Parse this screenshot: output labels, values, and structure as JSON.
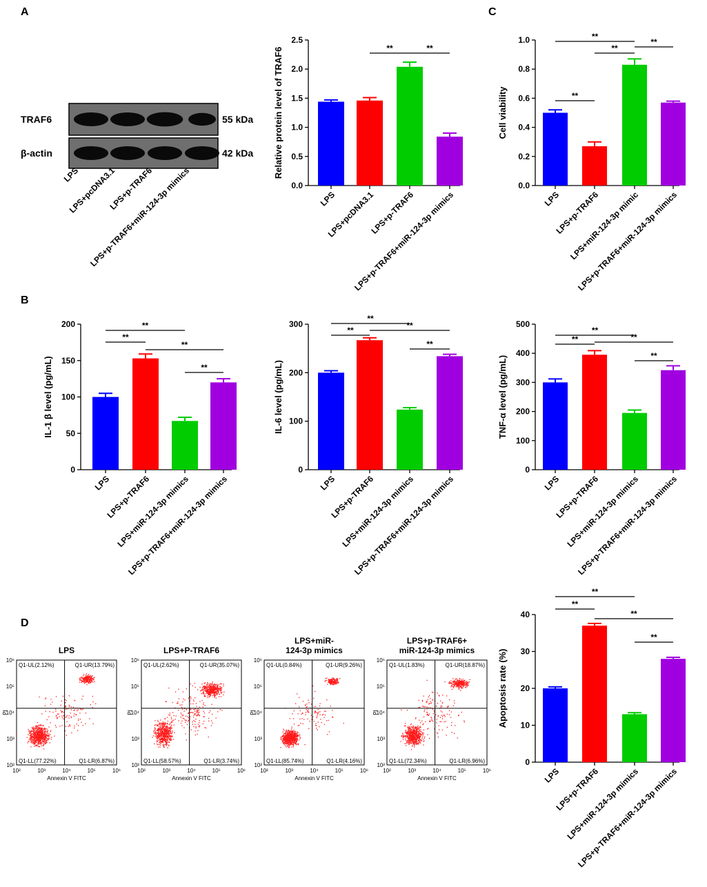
{
  "panels": {
    "A": "A",
    "B": "B",
    "C": "C",
    "D": "D"
  },
  "colors": {
    "blue": "#0000ff",
    "red": "#ff0000",
    "green": "#00cc00",
    "purple": "#a000e0",
    "dot": "#ff1a1a"
  },
  "western_blot": {
    "bands": [
      {
        "name": "TRAF6",
        "kda": "55 kDa",
        "intensity": [
          1.0,
          1.0,
          1.1,
          0.8
        ]
      },
      {
        "name": "β-actin",
        "kda": "42 kDa",
        "intensity": [
          1.0,
          1.0,
          1.0,
          1.0
        ]
      }
    ],
    "lanes": [
      "LPS",
      "LPS+pcDNA3.1",
      "LPS+p-TRAF6",
      "LPS+p-TRAF6+miR-124-3p mimics"
    ]
  },
  "chart_data": [
    {
      "id": "traf6",
      "type": "bar",
      "ylabel": "Relative protein level of TRAF6",
      "categories": [
        "LPS",
        "LPS+pcDNA3.1",
        "LPS+p-TRAF6",
        "LPS+p-TRAF6+miR-124-3p mimics"
      ],
      "values": [
        1.44,
        1.46,
        2.04,
        0.84
      ],
      "errors": [
        0.03,
        0.05,
        0.08,
        0.06
      ],
      "ylim": [
        0,
        2.5
      ],
      "yticks": [
        "0.0",
        "0.5",
        "1.0",
        "1.5",
        "2.0",
        "2.5"
      ],
      "ytickvals": [
        0,
        0.5,
        1,
        1.5,
        2,
        2.5
      ],
      "sig": [
        {
          "from": 1,
          "to": 2,
          "label": "**"
        },
        {
          "from": 2,
          "to": 3,
          "label": "**"
        }
      ]
    },
    {
      "id": "viability",
      "type": "bar",
      "ylabel": "Cell viability",
      "categories": [
        "LPS",
        "LPS+p-TRAF6",
        "LPS+miR-124-3p mimic",
        "LPS+p-TRAF6+miR-124-3p mimics"
      ],
      "values": [
        0.5,
        0.27,
        0.83,
        0.57
      ],
      "errors": [
        0.02,
        0.03,
        0.04,
        0.01
      ],
      "ylim": [
        0,
        1.0
      ],
      "yticks": [
        "0.0",
        "0.2",
        "0.4",
        "0.6",
        "0.8",
        "1.0"
      ],
      "ytickvals": [
        0,
        0.2,
        0.4,
        0.6,
        0.8,
        1.0
      ],
      "sig": [
        {
          "from": 0,
          "to": 2,
          "label": "**"
        },
        {
          "from": 1,
          "to": 2,
          "label": "**"
        },
        {
          "from": 2,
          "to": 3,
          "label": "**"
        },
        {
          "from": 0,
          "to": 1,
          "label": "**"
        }
      ]
    },
    {
      "id": "il1b",
      "type": "bar",
      "ylabel": "IL-1 β level (pg/mL)",
      "categories": [
        "LPS",
        "LPS+p-TRAF6",
        "LPS+miR-124-3p mimics",
        "LPS+p-TRAF6+miR-124-3p mimics"
      ],
      "values": [
        100,
        153,
        67,
        120
      ],
      "errors": [
        5,
        6,
        5,
        5
      ],
      "ylim": [
        0,
        200
      ],
      "yticks": [
        "0",
        "50",
        "100",
        "150",
        "200"
      ],
      "ytickvals": [
        0,
        50,
        100,
        150,
        200
      ],
      "sig": [
        {
          "from": 0,
          "to": 2,
          "label": "**"
        },
        {
          "from": 0,
          "to": 1,
          "label": "**"
        },
        {
          "from": 1,
          "to": 3,
          "label": "**"
        },
        {
          "from": 2,
          "to": 3,
          "label": "**"
        }
      ]
    },
    {
      "id": "il6",
      "type": "bar",
      "ylabel": "IL-6 level (pg/mL)",
      "categories": [
        "LPS",
        "LPS+p-TRAF6",
        "LPS+miR-124-3p mimics",
        "LPS+p-TRAF6+miR-124-3p mimics"
      ],
      "values": [
        200,
        267,
        124,
        234
      ],
      "errors": [
        4,
        5,
        4,
        4
      ],
      "ylim": [
        0,
        300
      ],
      "yticks": [
        "0",
        "100",
        "200",
        "300"
      ],
      "ytickvals": [
        0,
        100,
        200,
        300
      ],
      "sig": [
        {
          "from": 0,
          "to": 2,
          "label": "**"
        },
        {
          "from": 0,
          "to": 1,
          "label": "**"
        },
        {
          "from": 1,
          "to": 3,
          "label": "**"
        },
        {
          "from": 2,
          "to": 3,
          "label": "**"
        }
      ]
    },
    {
      "id": "tnfa",
      "type": "bar",
      "ylabel": "TNF-α level (pg/mL)",
      "categories": [
        "LPS",
        "LPS+p-TRAF6",
        "LPS+miR-124-3p mimics",
        "LPS+p-TRAF6+miR-124-3p mimics"
      ],
      "values": [
        300,
        395,
        195,
        342
      ],
      "errors": [
        12,
        14,
        10,
        15
      ],
      "ylim": [
        0,
        500
      ],
      "yticks": [
        "0",
        "100",
        "200",
        "300",
        "400",
        "500"
      ],
      "ytickvals": [
        0,
        100,
        200,
        300,
        400,
        500
      ],
      "sig": [
        {
          "from": 0,
          "to": 2,
          "label": "**"
        },
        {
          "from": 0,
          "to": 1,
          "label": "**"
        },
        {
          "from": 1,
          "to": 3,
          "label": "**"
        },
        {
          "from": 2,
          "to": 3,
          "label": "**"
        }
      ]
    },
    {
      "id": "apoptosis",
      "type": "bar",
      "ylabel": "Apoptosis rate (%)",
      "categories": [
        "LPS",
        "LPS+p-TRAF6",
        "LPS+miR-124-3p mimics",
        "LPS+p-TRAF6+miR-124-3p mimics"
      ],
      "values": [
        20,
        37,
        13,
        28
      ],
      "errors": [
        0.4,
        0.6,
        0.4,
        0.4
      ],
      "ylim": [
        0,
        40
      ],
      "yticks": [
        "0",
        "10",
        "20",
        "30",
        "40"
      ],
      "ytickvals": [
        0,
        10,
        20,
        30,
        40
      ],
      "sig": [
        {
          "from": 0,
          "to": 2,
          "label": "**"
        },
        {
          "from": 1,
          "to": 3,
          "label": "**"
        },
        {
          "from": 0,
          "to": 1,
          "label": "**"
        },
        {
          "from": 2,
          "to": 3,
          "label": "**"
        }
      ]
    }
  ],
  "flow": {
    "xlabel": "Annexin V FITC",
    "ylabel": "PI",
    "ticks": [
      "10²",
      "10³",
      "10⁴",
      "10⁵",
      "10⁶"
    ],
    "plots": [
      {
        "title": [
          "LPS"
        ],
        "ul": "Q1-UL(2.12%)",
        "ur": "Q1-UR(13.79%)",
        "ll": "Q1-LL(77.22%)",
        "lr": "Q1-LR(6.87%)"
      },
      {
        "title": [
          "LPS+P-TRAF6"
        ],
        "ul": "Q1-UL(2.62%)",
        "ur": "Q1-UR(35.07%)",
        "ll": "Q1-LL(58.57%)",
        "lr": "Q1-LR(3.74%)"
      },
      {
        "title": [
          "LPS+miR-",
          "124-3p mimics"
        ],
        "ul": "Q1-UL(0.84%)",
        "ur": "Q1-UR(9.26%)",
        "ll": "Q1-LL(85.74%)",
        "lr": "Q1-LR(4.16%)"
      },
      {
        "title": [
          "LPS+p-TRAF6+",
          "miR-124-3p mimics"
        ],
        "ul": "Q1-UL(1.83%)",
        "ur": "Q1-UR(18.87%)",
        "ll": "Q1-LL(72.34%)",
        "lr": "Q1-LR(6.96%)"
      }
    ]
  }
}
